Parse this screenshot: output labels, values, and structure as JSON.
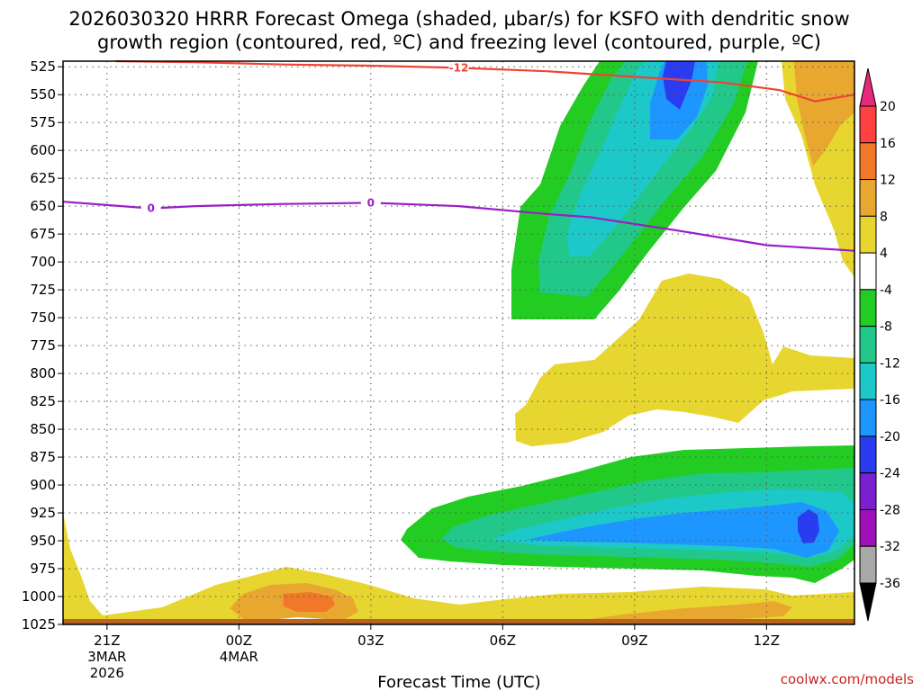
{
  "chart_data": {
    "type": "contour",
    "title_line1": "2026030320 HRRR Forecast Omega (shaded, μbar/s) for KSFO with dendritic snow",
    "title_line2": "growth region (contoured, red, ºC) and freezing level (contoured, purple, ºC)",
    "xlabel": "Forecast Time (UTC)",
    "y_ticks": [
      525,
      550,
      575,
      600,
      625,
      650,
      675,
      700,
      725,
      750,
      775,
      800,
      825,
      850,
      875,
      900,
      925,
      950,
      975,
      1000,
      1025
    ],
    "ylim": [
      520,
      1025
    ],
    "x_ticks": [
      {
        "hour": 1,
        "label": "21Z",
        "sub1": "3MAR",
        "sub2": "2026"
      },
      {
        "hour": 4,
        "label": "00Z",
        "sub1": "4MAR",
        "sub2": ""
      },
      {
        "hour": 7,
        "label": "03Z",
        "sub1": "",
        "sub2": ""
      },
      {
        "hour": 10,
        "label": "06Z",
        "sub1": "",
        "sub2": ""
      },
      {
        "hour": 13,
        "label": "09Z",
        "sub1": "",
        "sub2": ""
      },
      {
        "hour": 16,
        "label": "12Z",
        "sub1": "",
        "sub2": ""
      }
    ],
    "xlim": [
      0,
      18
    ],
    "colorbar": {
      "labels": [
        "20",
        "16",
        "12",
        "8",
        "4",
        "-4",
        "-8",
        "-12",
        "-16",
        "-20",
        "-24",
        "-28",
        "-32",
        "-36"
      ],
      "colors": [
        "#e8287a",
        "#ff4040",
        "#f07828",
        "#e8a830",
        "#e8d630",
        "#ffffff",
        "#22cc22",
        "#22c88a",
        "#1cc8c8",
        "#1e96ff",
        "#2a3cf0",
        "#7a20d0",
        "#a010b8",
        "#a8a8a8",
        "#000000"
      ]
    },
    "dgz_contour": {
      "label": "-12",
      "color": "#ee4433",
      "points": [
        [
          1.2,
          520
        ],
        [
          3,
          521
        ],
        [
          5,
          523
        ],
        [
          7,
          524
        ],
        [
          9,
          526
        ],
        [
          11,
          529
        ],
        [
          13,
          534
        ],
        [
          15,
          539
        ],
        [
          16.3,
          546
        ],
        [
          17.1,
          556
        ],
        [
          18,
          550
        ]
      ]
    },
    "freezing_contour": {
      "label": "0",
      "color": "#9a1ec8",
      "points": [
        [
          0,
          646
        ],
        [
          1,
          649
        ],
        [
          2,
          652
        ],
        [
          3,
          650
        ],
        [
          4,
          649
        ],
        [
          5,
          648
        ],
        [
          7,
          647
        ],
        [
          9,
          650
        ],
        [
          11,
          657
        ],
        [
          12,
          660
        ],
        [
          14,
          672
        ],
        [
          16,
          685
        ],
        [
          18,
          690
        ]
      ]
    }
  },
  "credit": "coolwx.com/models"
}
